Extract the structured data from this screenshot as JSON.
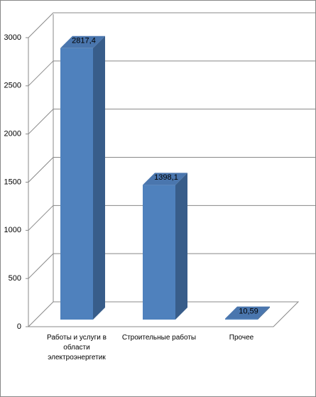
{
  "chart_data": {
    "type": "bar3d",
    "categories": [
      "Работы и услуги в области электроэнергетик",
      "Строительные работы",
      "Прочее"
    ],
    "values": [
      2817.4,
      1398.1,
      10.59
    ],
    "value_labels": [
      "2817,4",
      "1398,1",
      "10,59"
    ],
    "color": "#4f81bd",
    "ylim": [
      0,
      3000
    ],
    "yticks": [
      0,
      500,
      1000,
      1500,
      2000,
      2500,
      3000
    ],
    "grid": true
  }
}
